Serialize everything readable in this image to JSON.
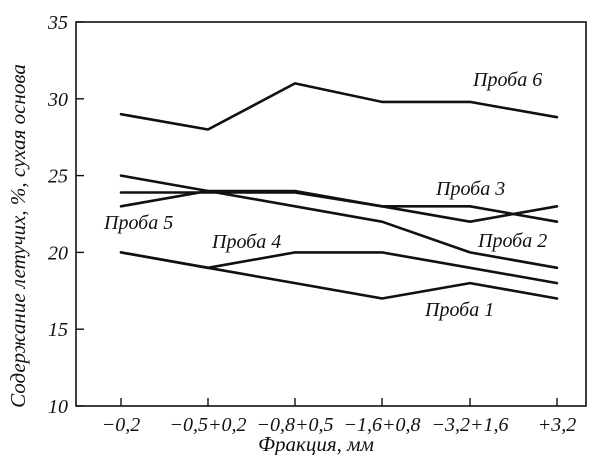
{
  "chart_data": {
    "type": "line",
    "xlabel": "Фракция, мм",
    "ylabel": "Содержание летучих, %, сухая основа",
    "categories": [
      "−0,2",
      "−0,5+0,2",
      "−0,8+0,5",
      "−1,6+0,8",
      "−3,2+1,6",
      "+3,2"
    ],
    "ylim": [
      10,
      35
    ],
    "yticks": [
      "10",
      "15",
      "20",
      "25",
      "30",
      "35"
    ],
    "grid": false,
    "legend": "none",
    "line_color": "#111111",
    "series": [
      {
        "name": "Проба 6",
        "values": [
          29,
          28,
          31,
          29.8,
          29.8,
          28.8
        ]
      },
      {
        "name": "Проба 3",
        "values": [
          23.9,
          23.9,
          23.9,
          23,
          23,
          22
        ]
      },
      {
        "name": "Проба 2",
        "values": [
          25,
          24,
          23,
          22,
          20,
          19
        ]
      },
      {
        "name": "Проба 5",
        "values": [
          23,
          24,
          24,
          23,
          22,
          23
        ]
      },
      {
        "name": "Проба 4",
        "values": [
          20,
          19,
          20,
          20,
          19,
          18
        ]
      },
      {
        "name": "Проба 1",
        "values": [
          20,
          19,
          18,
          17,
          18,
          17
        ]
      }
    ]
  }
}
